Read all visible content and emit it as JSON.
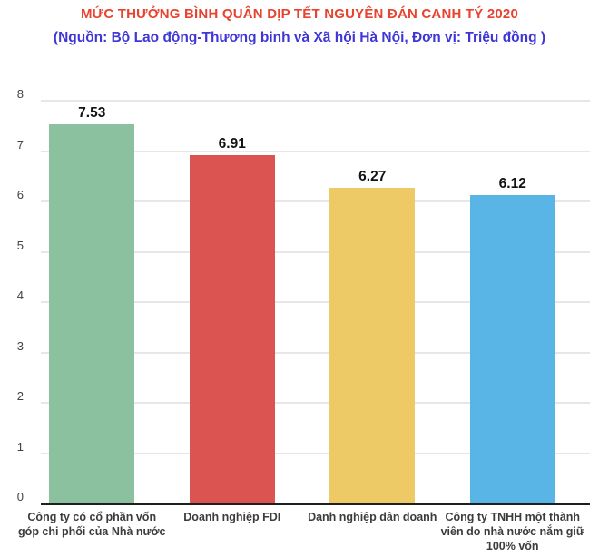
{
  "header": {
    "title": "MỨC THƯỞNG BÌNH QUÂN DỊP TẾT NGUYÊN ĐÁN CANH TÝ 2020",
    "subtitle": "(Nguồn: Bộ Lao động-Thương binh và Xã hội Hà Nội, Đơn vị: Triệu đồng )",
    "title_color": "#e8432f",
    "subtitle_color": "#3f36d6"
  },
  "chart_data": {
    "type": "bar",
    "title": "MỨC THƯỞNG BÌNH QUÂN DỊP TẾT NGUYÊN ĐÁN CANH TÝ 2020",
    "subtitle": "(Nguồn: Bộ Lao động-Thương binh và Xã hội Hà Nội, Đơn vị: Triệu đồng )",
    "categories": [
      "Công ty có cổ phần vốn góp chi phối của Nhà nước",
      "Doanh nghiệp FDI",
      "Danh nghiệp dân doanh",
      "Công ty TNHH một thành viên do nhà nước nắm giữ 100% vốn"
    ],
    "values": [
      7.53,
      6.91,
      6.27,
      6.12
    ],
    "value_labels": [
      "7.53",
      "6.91",
      "6.27",
      "6.12"
    ],
    "bar_colors": [
      "#8cc19f",
      "#dc5452",
      "#eeca67",
      "#58b5e6"
    ],
    "xlabel": "",
    "ylabel": "",
    "ylim": [
      0,
      8
    ],
    "yticks": [
      0,
      1,
      2,
      3,
      4,
      5,
      6,
      7,
      8
    ],
    "grid": true,
    "legend": "none"
  },
  "style": {
    "background": "#ffffff",
    "gridline_color": "#e7e7e7",
    "axis_line_color": "#1f1f1f",
    "tick_label_color": "#424242",
    "value_label_color": "#131313",
    "category_label_color": "#3c3c3c"
  }
}
